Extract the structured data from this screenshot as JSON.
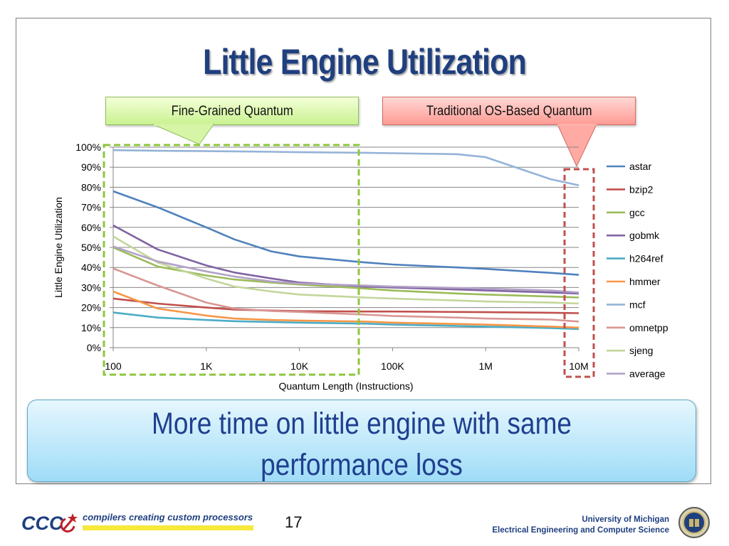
{
  "slide": {
    "title": "Little Engine Utilization",
    "callout_left": "Fine-Grained Quantum",
    "callout_right": "Traditional OS-Based Quantum",
    "conclusion_line1": "More time on little engine with same",
    "conclusion_line2": "performance loss",
    "page_number": "17"
  },
  "footer": {
    "logo_text": "CCC",
    "tagline": "compilers creating custom processors",
    "university": "University of Michigan",
    "department": "Electrical Engineering and Computer Science"
  },
  "colors": {
    "title": "#1f3f7f",
    "highlight_green": "#8dc63f",
    "highlight_red": "#c0504d"
  },
  "chart_data": {
    "type": "line",
    "xlabel": "Quantum Length (Instructions)",
    "ylabel": "Little Engine Utilization",
    "x_scale": "log",
    "x_ticks": [
      100,
      1000,
      10000,
      100000,
      1000000,
      10000000
    ],
    "x_tick_labels": [
      "100",
      "1K",
      "10K",
      "100K",
      "1M",
      "10M"
    ],
    "y_ticks": [
      0,
      10,
      20,
      30,
      40,
      50,
      60,
      70,
      80,
      90,
      100
    ],
    "y_tick_labels": [
      "0%",
      "10%",
      "20%",
      "30%",
      "40%",
      "50%",
      "60%",
      "70%",
      "80%",
      "90%",
      "100%"
    ],
    "ylim": [
      0,
      100
    ],
    "grid": "horizontal",
    "legend": "right",
    "x": [
      100,
      300,
      1000,
      2000,
      5000,
      10000,
      50000,
      100000,
      500000,
      1000000,
      5000000,
      10000000
    ],
    "series": [
      {
        "name": "astar",
        "color": "#4f81bd",
        "values": [
          78,
          70,
          60,
          54,
          48,
          45.5,
          42.5,
          41.5,
          40,
          39.3,
          37.3,
          36.3
        ]
      },
      {
        "name": "bzip2",
        "color": "#c0504d",
        "values": [
          24.5,
          22,
          20,
          19,
          18.5,
          18.2,
          18,
          18,
          17.8,
          17.7,
          17.4,
          17.2
        ]
      },
      {
        "name": "gcc",
        "color": "#9bbb59",
        "values": [
          50,
          40.5,
          36,
          34,
          32.5,
          31.5,
          29.5,
          28.5,
          27,
          26.5,
          25.5,
          25
        ]
      },
      {
        "name": "gobmk",
        "color": "#8064a2",
        "values": [
          61,
          49,
          41,
          37.5,
          34.5,
          32.5,
          30.5,
          30,
          29,
          28.5,
          27.5,
          27
        ]
      },
      {
        "name": "h264ref",
        "color": "#4bacc6",
        "values": [
          17.5,
          15,
          13.8,
          13.2,
          12.8,
          12.5,
          12,
          11.5,
          10.8,
          10.5,
          9.8,
          9.3
        ]
      },
      {
        "name": "hmmer",
        "color": "#f79646",
        "values": [
          28,
          19.5,
          16,
          14.5,
          13.8,
          13.5,
          13,
          12.5,
          11.8,
          11.5,
          10.5,
          10
        ]
      },
      {
        "name": "mcf",
        "color": "#95b3d7",
        "values": [
          98.5,
          98.2,
          98,
          97.9,
          97.7,
          97.5,
          97.2,
          97,
          96.5,
          95,
          84,
          81
        ]
      },
      {
        "name": "omnetpp",
        "color": "#d99694",
        "values": [
          39.5,
          31,
          22.5,
          19.5,
          18.3,
          17.8,
          16.5,
          15.8,
          15,
          14.5,
          14,
          13
        ]
      },
      {
        "name": "sjeng",
        "color": "#c3d69b",
        "values": [
          55.5,
          42.5,
          34.5,
          30.5,
          28,
          26.5,
          25,
          24.5,
          23.5,
          23,
          22.5,
          22
        ]
      },
      {
        "name": "average",
        "color": "#b3a2c7",
        "values": [
          50.5,
          43,
          38,
          35.5,
          33,
          32,
          31,
          30.5,
          29.8,
          29.5,
          28.5,
          27.5
        ]
      }
    ]
  }
}
